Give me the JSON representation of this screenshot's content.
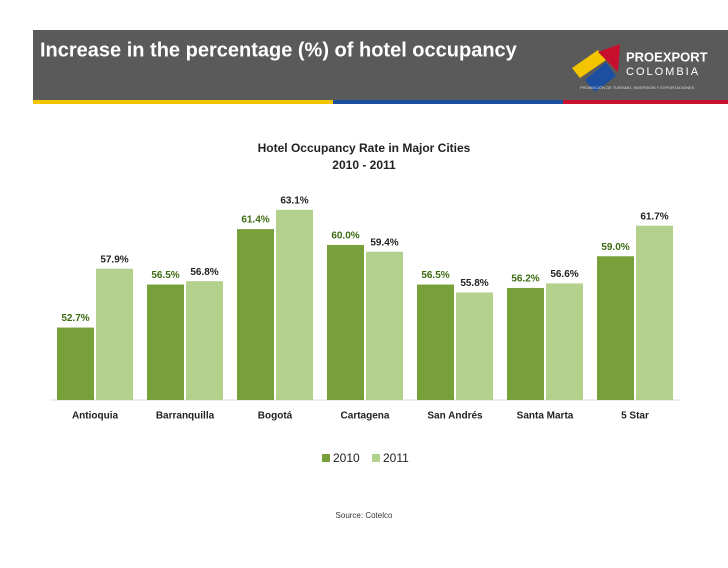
{
  "header": {
    "title": "Increase in the percentage (%) of hotel occupancy"
  },
  "logo": {
    "name": "PROEXPORT",
    "country": "COLOMBIA",
    "tagline": "PROMOCIÓN DE TURISMO, INVERSIÓN Y EXPORTACIONES"
  },
  "chart_data": {
    "type": "bar",
    "title": "Hotel Occupancy Rate in Major Cities",
    "subtitle": "2010 - 2011",
    "categories": [
      "Antioquia",
      "Barranquilla",
      "Bogotá",
      "Cartagena",
      "San Andrés",
      "Santa Marta",
      "5 Star"
    ],
    "series": [
      {
        "name": "2010",
        "color": "#77a03a",
        "label_color": "#3d6b12",
        "values": [
          52.7,
          56.5,
          61.4,
          60.0,
          56.5,
          56.2,
          59.0
        ],
        "value_labels": [
          "52.7%",
          "56.5%",
          "61.4%",
          "60.0%",
          "56.5%",
          "56.2%",
          "59.0%"
        ]
      },
      {
        "name": "2011",
        "color": "#b3d08d",
        "label_color": "#222222",
        "values": [
          57.9,
          56.8,
          63.1,
          59.4,
          55.8,
          56.6,
          61.7
        ],
        "value_labels": [
          "57.9%",
          "56.8%",
          "63.1%",
          "59.4%",
          "55.8%",
          "56.6%",
          "61.7%"
        ]
      }
    ],
    "ylim": [
      46.3,
      64.5
    ],
    "legend": "bottom"
  },
  "source": "Source: Cotelco"
}
